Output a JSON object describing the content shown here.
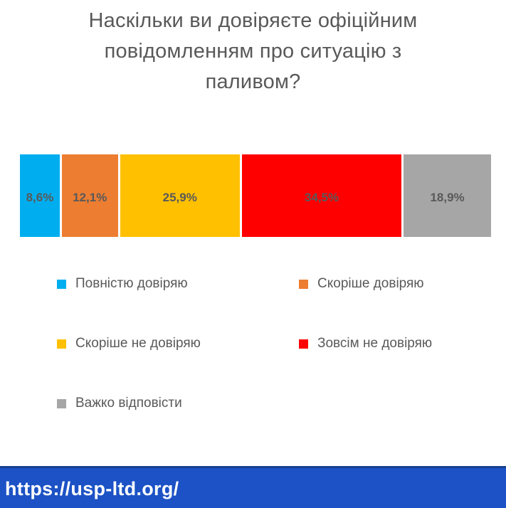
{
  "page": {
    "background": "#ffffff"
  },
  "title": {
    "full": "Наскільки ви довіряєте офіційним повідомленням про ситуацію з паливом?",
    "lines": [
      "Наскільки ви довіряєте офіційним",
      "повідомленням про ситуацію з",
      "паливом?"
    ],
    "color": "#595959"
  },
  "chart": {
    "label_color": "#595959",
    "segments": [
      {
        "name": "Повністю довіряю",
        "value": 8.6,
        "label": "8,6%",
        "color": "#00AEEF"
      },
      {
        "name": "Скоріше довіряю",
        "value": 12.1,
        "label": "12,1%",
        "color": "#ED7D31"
      },
      {
        "name": "Скоріше не довіряю",
        "value": 25.9,
        "label": "25,9%",
        "color": "#FFC000"
      },
      {
        "name": "Зовсім не довіряю",
        "value": 34.5,
        "label": "34,5%",
        "color": "#FF0000"
      },
      {
        "name": "Важко відповісти",
        "value": 18.9,
        "label": "18,9%",
        "color": "#A6A6A6"
      }
    ]
  },
  "legend": {
    "items": [
      {
        "label": "Повністю довіряю",
        "color": "#00AEEF"
      },
      {
        "label": "Скоріше довіряю",
        "color": "#ED7D31"
      },
      {
        "label": "Скоріше не довіряю",
        "color": "#FFC000"
      },
      {
        "label": "Зовсім не довіряю",
        "color": "#FF0000"
      },
      {
        "label": "Важко відповісти",
        "color": "#A6A6A6"
      }
    ]
  },
  "footer": {
    "url": "https://usp-ltd.org/",
    "background": "#1C52C5",
    "border_top": "#17408F",
    "text_color": "#FFFFFF"
  },
  "chart_data": {
    "type": "bar",
    "subtype": "horizontal-stacked-100-percent",
    "title": "Наскільки ви довіряєте офіційним повідомленням про ситуацію з паливом?",
    "categories": [
      "Повністю довіряю",
      "Скоріше довіряю",
      "Скоріше не довіряю",
      "Зовсім не довіряю",
      "Важко відповісти"
    ],
    "values": [
      8.6,
      12.1,
      25.9,
      34.5,
      18.9
    ],
    "data_labels": [
      "8,6%",
      "12,1%",
      "25,9%",
      "34,5%",
      "18,9%"
    ],
    "colors": [
      "#00AEEF",
      "#ED7D31",
      "#FFC000",
      "#FF0000",
      "#A6A6A6"
    ],
    "xlabel": "",
    "ylabel": "",
    "axis_visible": false,
    "grid": false,
    "legend_position": "bottom",
    "source_url": "https://usp-ltd.org/"
  }
}
